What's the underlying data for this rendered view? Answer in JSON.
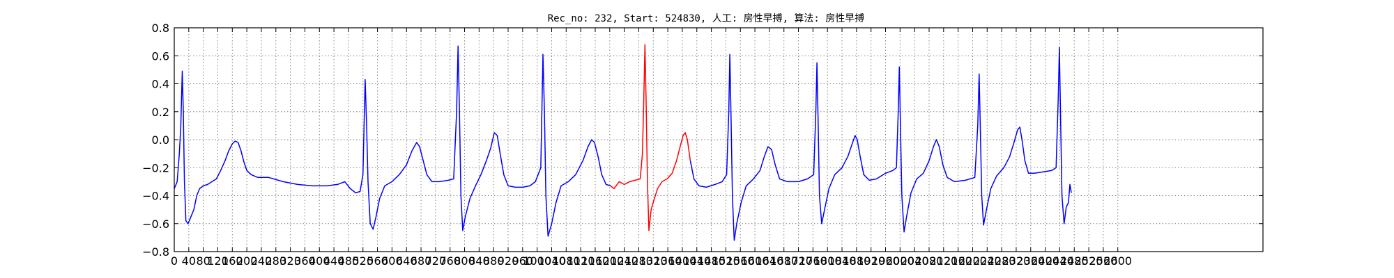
{
  "chart_data": {
    "type": "line",
    "title": "Rec_no: 232, Start: 524830, 人工: 房性早搏, 算法: 房性早搏",
    "xlabel": "",
    "ylabel": "",
    "xlim": [
      0,
      3000
    ],
    "ylim": [
      -0.8,
      0.8
    ],
    "grid": true,
    "x_ticks": [
      0,
      40,
      80,
      120,
      160,
      200,
      240,
      280,
      320,
      360,
      400,
      440,
      480,
      520,
      560,
      600,
      640,
      680,
      720,
      760,
      800,
      840,
      880,
      920,
      960,
      1000,
      1040,
      1080,
      1120,
      1160,
      1200,
      1240,
      1280,
      1320,
      1360,
      1400,
      1440,
      1480,
      1520,
      1560,
      1600,
      1640,
      1680,
      1720,
      1760,
      1800,
      1840,
      1880,
      1920,
      1960,
      2000,
      2040,
      2080,
      2120,
      2160,
      2200,
      2240,
      2280,
      2320,
      2360,
      2400,
      2440,
      2480,
      2520,
      2560,
      2600
    ],
    "x_tick_labels": [
      "0",
      "40",
      "80",
      "120",
      "160",
      "200",
      "240",
      "280",
      "320",
      "360",
      "400",
      "440",
      "480",
      "520",
      "560",
      "600",
      "640",
      "680",
      "720",
      "760",
      "800",
      "840",
      "880",
      "920",
      "960",
      "1000",
      "1040",
      "1080",
      "1120",
      "1160",
      "1200",
      "1240",
      "1280",
      "1320",
      "1360",
      "1400",
      "1440",
      "1480",
      "1520",
      "1560",
      "1600",
      "1640",
      "1680",
      "1720",
      "1760",
      "1800",
      "1840",
      "1880",
      "1920",
      "1960",
      "2000",
      "2040",
      "2080",
      "2120",
      "2160",
      "2200",
      "2240",
      "2280",
      "2320",
      "2360",
      "2400",
      "2440",
      "2480",
      "2520",
      "2560",
      "2600"
    ],
    "y_ticks": [
      0.8,
      0.6,
      0.4,
      0.2,
      0.0,
      -0.2,
      -0.4,
      -0.6,
      -0.8
    ],
    "y_tick_labels": [
      "0.8",
      "0.6",
      "0.4",
      "0.2",
      "0.0",
      "−0.2",
      "−0.4",
      "−0.6",
      "−0.8"
    ],
    "series": [
      {
        "color": "#0000ff",
        "segments": [
          [
            [
              0,
              -0.35
            ],
            [
              8,
              -0.3
            ],
            [
              14,
              -0.1
            ],
            [
              18,
              0.1
            ],
            [
              22,
              0.49
            ],
            [
              25,
              0.2
            ],
            [
              28,
              -0.3
            ],
            [
              32,
              -0.58
            ],
            [
              38,
              -0.6
            ],
            [
              46,
              -0.55
            ],
            [
              54,
              -0.5
            ],
            [
              62,
              -0.4
            ],
            [
              70,
              -0.35
            ],
            [
              80,
              -0.33
            ],
            [
              92,
              -0.32
            ],
            [
              104,
              -0.3
            ],
            [
              116,
              -0.28
            ],
            [
              128,
              -0.22
            ],
            [
              140,
              -0.15
            ],
            [
              150,
              -0.08
            ],
            [
              160,
              -0.03
            ],
            [
              168,
              -0.01
            ],
            [
              176,
              -0.02
            ],
            [
              184,
              -0.08
            ],
            [
              192,
              -0.16
            ],
            [
              200,
              -0.22
            ],
            [
              212,
              -0.25
            ],
            [
              230,
              -0.27
            ],
            [
              260,
              -0.27
            ],
            [
              300,
              -0.3
            ],
            [
              340,
              -0.32
            ],
            [
              380,
              -0.33
            ],
            [
              420,
              -0.33
            ],
            [
              450,
              -0.32
            ],
            [
              470,
              -0.3
            ],
            [
              485,
              -0.35
            ],
            [
              500,
              -0.38
            ],
            [
              512,
              -0.37
            ],
            [
              520,
              -0.25
            ],
            [
              526,
              0.43
            ],
            [
              530,
              0.1
            ],
            [
              534,
              -0.3
            ],
            [
              540,
              -0.6
            ],
            [
              548,
              -0.64
            ],
            [
              556,
              -0.55
            ],
            [
              566,
              -0.42
            ],
            [
              580,
              -0.33
            ],
            [
              600,
              -0.3
            ],
            [
              620,
              -0.25
            ],
            [
              640,
              -0.18
            ],
            [
              655,
              -0.08
            ],
            [
              668,
              -0.02
            ],
            [
              676,
              -0.05
            ],
            [
              686,
              -0.15
            ],
            [
              696,
              -0.25
            ],
            [
              710,
              -0.3
            ],
            [
              730,
              -0.3
            ],
            [
              755,
              -0.29
            ],
            [
              770,
              -0.28
            ],
            [
              778,
              0.2
            ],
            [
              782,
              0.67
            ],
            [
              786,
              0.2
            ],
            [
              790,
              -0.4
            ],
            [
              795,
              -0.65
            ],
            [
              802,
              -0.55
            ],
            [
              815,
              -0.42
            ],
            [
              830,
              -0.33
            ],
            [
              845,
              -0.25
            ],
            [
              860,
              -0.15
            ],
            [
              872,
              -0.06
            ],
            [
              882,
              0.05
            ],
            [
              890,
              0.03
            ],
            [
              898,
              -0.1
            ],
            [
              908,
              -0.25
            ],
            [
              920,
              -0.33
            ],
            [
              940,
              -0.34
            ],
            [
              960,
              -0.34
            ],
            [
              980,
              -0.33
            ],
            [
              995,
              -0.3
            ],
            [
              1010,
              -0.2
            ],
            [
              1016,
              0.61
            ],
            [
              1020,
              0.2
            ],
            [
              1024,
              -0.4
            ],
            [
              1030,
              -0.69
            ],
            [
              1040,
              -0.6
            ],
            [
              1052,
              -0.45
            ],
            [
              1066,
              -0.33
            ],
            [
              1086,
              -0.3
            ],
            [
              1106,
              -0.25
            ],
            [
              1126,
              -0.15
            ],
            [
              1140,
              -0.05
            ],
            [
              1150,
              0.0
            ],
            [
              1158,
              -0.02
            ],
            [
              1168,
              -0.12
            ],
            [
              1178,
              -0.25
            ],
            [
              1190,
              -0.32
            ],
            [
              1202,
              -0.33
            ]
          ]
        ]
      },
      {
        "color": "#ff0000",
        "segments": [
          [
            [
              1202,
              -0.33
            ],
            [
              1212,
              -0.35
            ],
            [
              1226,
              -0.3
            ],
            [
              1240,
              -0.32
            ],
            [
              1255,
              -0.3
            ],
            [
              1270,
              -0.29
            ],
            [
              1284,
              -0.28
            ],
            [
              1290,
              -0.1
            ],
            [
              1294,
              0.3
            ],
            [
              1297,
              0.68
            ],
            [
              1300,
              0.3
            ],
            [
              1304,
              -0.3
            ],
            [
              1308,
              -0.65
            ],
            [
              1314,
              -0.5
            ],
            [
              1322,
              -0.43
            ],
            [
              1332,
              -0.35
            ],
            [
              1344,
              -0.3
            ],
            [
              1358,
              -0.28
            ],
            [
              1372,
              -0.24
            ],
            [
              1384,
              -0.15
            ],
            [
              1394,
              -0.05
            ],
            [
              1402,
              0.03
            ],
            [
              1408,
              0.05
            ],
            [
              1414,
              0.0
            ],
            [
              1422,
              -0.15
            ]
          ]
        ]
      },
      {
        "color": "#0000ff",
        "segments": [
          [
            [
              1422,
              -0.15
            ],
            [
              1432,
              -0.28
            ],
            [
              1446,
              -0.33
            ],
            [
              1466,
              -0.34
            ],
            [
              1490,
              -0.32
            ],
            [
              1510,
              -0.3
            ],
            [
              1522,
              -0.25
            ],
            [
              1528,
              0.2
            ],
            [
              1531,
              0.61
            ],
            [
              1534,
              0.2
            ],
            [
              1538,
              -0.4
            ],
            [
              1543,
              -0.72
            ],
            [
              1550,
              -0.6
            ],
            [
              1562,
              -0.45
            ],
            [
              1576,
              -0.33
            ],
            [
              1596,
              -0.28
            ],
            [
              1614,
              -0.22
            ],
            [
              1626,
              -0.12
            ],
            [
              1636,
              -0.05
            ],
            [
              1646,
              -0.07
            ],
            [
              1656,
              -0.18
            ],
            [
              1668,
              -0.28
            ],
            [
              1690,
              -0.3
            ],
            [
              1720,
              -0.3
            ],
            [
              1745,
              -0.28
            ],
            [
              1762,
              -0.25
            ],
            [
              1768,
              0.2
            ],
            [
              1771,
              0.55
            ],
            [
              1774,
              0.15
            ],
            [
              1778,
              -0.4
            ],
            [
              1784,
              -0.6
            ],
            [
              1792,
              -0.5
            ],
            [
              1804,
              -0.35
            ],
            [
              1820,
              -0.25
            ],
            [
              1840,
              -0.2
            ],
            [
              1856,
              -0.12
            ],
            [
              1868,
              -0.03
            ],
            [
              1876,
              0.03
            ],
            [
              1882,
              0.0
            ],
            [
              1890,
              -0.12
            ],
            [
              1900,
              -0.25
            ],
            [
              1915,
              -0.29
            ],
            [
              1935,
              -0.28
            ],
            [
              1960,
              -0.24
            ],
            [
              1980,
              -0.22
            ],
            [
              1990,
              -0.2
            ],
            [
              1995,
              0.2
            ],
            [
              1998,
              0.52
            ],
            [
              2001,
              0.1
            ],
            [
              2005,
              -0.4
            ],
            [
              2011,
              -0.66
            ],
            [
              2018,
              -0.55
            ],
            [
              2030,
              -0.38
            ],
            [
              2046,
              -0.28
            ],
            [
              2064,
              -0.24
            ],
            [
              2080,
              -0.15
            ],
            [
              2092,
              -0.05
            ],
            [
              2100,
              0.0
            ],
            [
              2108,
              -0.05
            ],
            [
              2118,
              -0.18
            ],
            [
              2130,
              -0.27
            ],
            [
              2150,
              -0.3
            ],
            [
              2180,
              -0.29
            ],
            [
              2206,
              -0.27
            ],
            [
              2214,
              0.1
            ],
            [
              2218,
              0.47
            ],
            [
              2221,
              0.1
            ],
            [
              2225,
              -0.4
            ],
            [
              2230,
              -0.61
            ],
            [
              2238,
              -0.5
            ],
            [
              2250,
              -0.35
            ],
            [
              2266,
              -0.26
            ],
            [
              2286,
              -0.2
            ],
            [
              2302,
              -0.12
            ],
            [
              2314,
              -0.02
            ],
            [
              2324,
              0.07
            ],
            [
              2330,
              0.09
            ],
            [
              2336,
              0.0
            ],
            [
              2344,
              -0.15
            ],
            [
              2354,
              -0.24
            ],
            [
              2370,
              -0.24
            ],
            [
              2395,
              -0.23
            ],
            [
              2418,
              -0.22
            ],
            [
              2430,
              -0.2
            ],
            [
              2436,
              0.3
            ],
            [
              2439,
              0.66
            ],
            [
              2442,
              0.2
            ],
            [
              2446,
              -0.4
            ],
            [
              2452,
              -0.6
            ],
            [
              2458,
              -0.48
            ],
            [
              2464,
              -0.45
            ],
            [
              2468,
              -0.32
            ],
            [
              2472,
              -0.38
            ]
          ]
        ]
      }
    ]
  }
}
